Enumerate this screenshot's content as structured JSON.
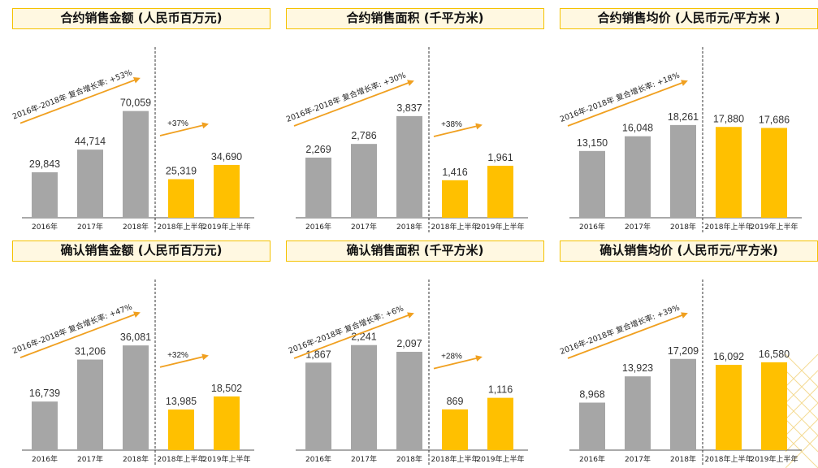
{
  "colors": {
    "historical": "#a6a6a6",
    "half_year": "#ffc000",
    "arrow": "#f0a020",
    "title_border": "#f5c200"
  },
  "panels": [
    {
      "title": "合约销售金额 (人民币百万元)",
      "chart_data": {
        "type": "bar",
        "categories": [
          "2016年",
          "2017年",
          "2018年",
          "2018年上半年",
          "2019年上半年"
        ],
        "values": [
          29843,
          44714,
          70059,
          25319,
          34690
        ],
        "value_labels": [
          "29,843",
          "44,714",
          "70,059",
          "25,319",
          "34,690"
        ],
        "ylim": [
          0,
          80000
        ],
        "cagr_label": "2016年-2018年 复合增长率: +53%",
        "growth_label": "+37%"
      }
    },
    {
      "title": "合约销售面积 (千平方米)",
      "chart_data": {
        "type": "bar",
        "categories": [
          "2016年",
          "2017年",
          "2018年",
          "2018年上半年",
          "2019年上半年"
        ],
        "values": [
          2269,
          2786,
          3837,
          1416,
          1961
        ],
        "value_labels": [
          "2,269",
          "2,786",
          "3,837",
          "1,416",
          "1,961"
        ],
        "ylim": [
          0,
          4600
        ],
        "cagr_label": "2016年-2018年 复合增长率: +30%",
        "growth_label": "+38%"
      }
    },
    {
      "title": "合约销售均价 (人民币元/平方米 )",
      "chart_data": {
        "type": "bar",
        "categories": [
          "2016年",
          "2017年",
          "2018年",
          "2018年上半年",
          "2019年上半年"
        ],
        "values": [
          13150,
          16048,
          18261,
          17880,
          17686
        ],
        "value_labels": [
          "13,150",
          "16,048",
          "18,261",
          "17,880",
          "17,686"
        ],
        "ylim": [
          0,
          24000
        ],
        "cagr_label": "2016年-2018年 复合增长率: +18%",
        "growth_label": ""
      }
    },
    {
      "title": "确认销售金额 (人民币百万元)",
      "chart_data": {
        "type": "bar",
        "categories": [
          "2016年",
          "2017年",
          "2018年",
          "2018年上半年",
          "2019年上半年"
        ],
        "values": [
          16739,
          31206,
          36081,
          13985,
          18502
        ],
        "value_labels": [
          "16,739",
          "31,206",
          "36,081",
          "13,985",
          "18,502"
        ],
        "ylim": [
          0,
          42000
        ],
        "cagr_label": "2016年-2018年 复合增长率: +47%",
        "growth_label": "+32%"
      }
    },
    {
      "title": "确认销售面积 (千平方米)",
      "chart_data": {
        "type": "bar",
        "categories": [
          "2016年",
          "2017年",
          "2018年",
          "2018年上半年",
          "2019年上半年"
        ],
        "values": [
          1867,
          2241,
          2097,
          869,
          1116
        ],
        "value_labels": [
          "1,867",
          "2,241",
          "2,097",
          "869",
          "1,116"
        ],
        "ylim": [
          0,
          2600
        ],
        "cagr_label": "2016年-2018年 复合增长率: +6%",
        "growth_label": "+28%"
      }
    },
    {
      "title": "确认销售均价 (人民币元/平方米)",
      "chart_data": {
        "type": "bar",
        "categories": [
          "2016年",
          "2017年",
          "2018年",
          "2018年上半年",
          "2019年上半年"
        ],
        "values": [
          8968,
          13923,
          17209,
          16092,
          16580
        ],
        "value_labels": [
          "8,968",
          "13,923",
          "17,209",
          "16,092",
          "16,580"
        ],
        "ylim": [
          0,
          23000
        ],
        "cagr_label": "2016年-2018年 复合增长率: +39%",
        "growth_label": ""
      }
    }
  ]
}
